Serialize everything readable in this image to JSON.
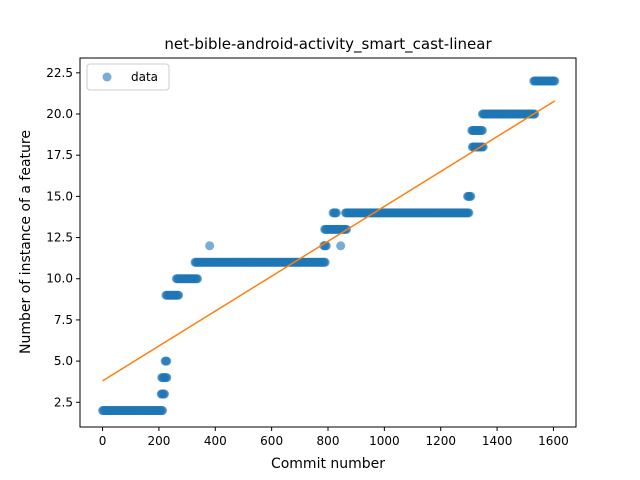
{
  "chart_data": {
    "type": "scatter",
    "title": "net-bible-android-activity_smart_cast-linear",
    "xlabel": "Commit number",
    "ylabel": "Number of instance of a feature",
    "xlim": [
      -80,
      1680
    ],
    "ylim": [
      1.0,
      23.4
    ],
    "xticks": [
      0,
      200,
      400,
      600,
      800,
      1000,
      1200,
      1400,
      1600
    ],
    "yticks": [
      2.5,
      5.0,
      7.5,
      10.0,
      12.5,
      15.0,
      17.5,
      20.0,
      22.5
    ],
    "grid": false,
    "legend": {
      "position": "top-left",
      "entries": [
        "data"
      ]
    },
    "colors": {
      "data": "#1f77b4",
      "fit": "#ff7f0e"
    },
    "series": [
      {
        "name": "data",
        "style": "markers",
        "runs": [
          {
            "x_start": 0,
            "x_end": 215,
            "y": 2
          },
          {
            "x_start": 208,
            "x_end": 220,
            "y": 3
          },
          {
            "x_start": 210,
            "x_end": 228,
            "y": 4
          },
          {
            "x_start": 222,
            "x_end": 228,
            "y": 5
          },
          {
            "x_start": 225,
            "x_end": 272,
            "y": 9
          },
          {
            "x_start": 262,
            "x_end": 338,
            "y": 10
          },
          {
            "x_start": 328,
            "x_end": 792,
            "y": 11
          },
          {
            "x_start": 785,
            "x_end": 795,
            "y": 12
          },
          {
            "x_start": 788,
            "x_end": 868,
            "y": 13
          },
          {
            "x_start": 818,
            "x_end": 832,
            "y": 14
          },
          {
            "x_start": 862,
            "x_end": 1302,
            "y": 14
          },
          {
            "x_start": 1295,
            "x_end": 1308,
            "y": 15
          },
          {
            "x_start": 1310,
            "x_end": 1320,
            "y": 19
          },
          {
            "x_start": 1312,
            "x_end": 1352,
            "y": 18
          },
          {
            "x_start": 1318,
            "x_end": 1348,
            "y": 19
          },
          {
            "x_start": 1348,
            "x_end": 1535,
            "y": 20
          },
          {
            "x_start": 1530,
            "x_end": 1605,
            "y": 22
          }
        ],
        "points": [
          {
            "x": 380,
            "y": 12
          },
          {
            "x": 845,
            "y": 12
          }
        ]
      },
      {
        "style": "line",
        "x": [
          0,
          1605
        ],
        "y": [
          3.8,
          20.8
        ]
      }
    ]
  }
}
